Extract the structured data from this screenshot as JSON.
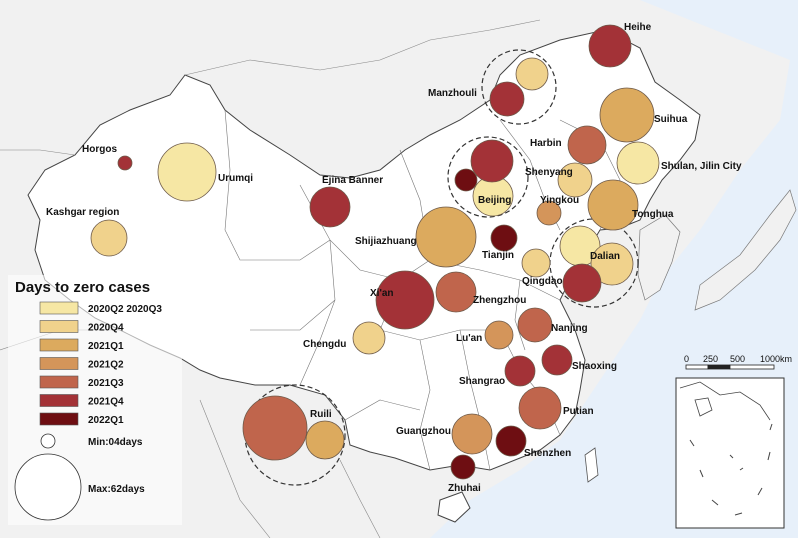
{
  "legend": {
    "title": "Days to zero cases",
    "classes": [
      {
        "label": "2020Q2 2020Q3",
        "color": "#f6e7a4"
      },
      {
        "label": "2020Q4",
        "color": "#f0d28c"
      },
      {
        "label": "2021Q1",
        "color": "#dcaa5e"
      },
      {
        "label": "2021Q2",
        "color": "#d4955a"
      },
      {
        "label": "2021Q3",
        "color": "#c0654c"
      },
      {
        "label": "2021Q4",
        "color": "#a33237"
      },
      {
        "label": "2022Q1",
        "color": "#6e0e12"
      }
    ],
    "size_min_label": "Min:04days",
    "size_max_label": "Max:62days"
  },
  "scale_bar": {
    "ticks": [
      "0",
      "250",
      "500",
      "1000km"
    ]
  },
  "cities": [
    {
      "name": "Heihe",
      "class": 5
    },
    {
      "name": "Manzhouli",
      "class": 5
    },
    {
      "name": "Manzhouli-2",
      "label": "",
      "class": 1
    },
    {
      "name": "Suihua",
      "class": 2
    },
    {
      "name": "Harbin",
      "class": 4
    },
    {
      "name": "Horgos",
      "class": 5
    },
    {
      "name": "Urumqi",
      "class": 0
    },
    {
      "name": "Shulan, Jilin City",
      "class": 0
    },
    {
      "name": "Shenyang",
      "class": 1
    },
    {
      "name": "Ejina Banner",
      "class": 5
    },
    {
      "name": "Beijing",
      "class": 0
    },
    {
      "name": "Beijing-2",
      "label": "",
      "class": 5
    },
    {
      "name": "Beijing-3",
      "label": "",
      "class": 6
    },
    {
      "name": "Yingkou",
      "class": 3
    },
    {
      "name": "Tonghua",
      "class": 2
    },
    {
      "name": "Kashgar region",
      "class": 1
    },
    {
      "name": "Shijiazhuang",
      "class": 2
    },
    {
      "name": "Tianjin",
      "class": 6
    },
    {
      "name": "Dalian",
      "class": 0
    },
    {
      "name": "Dalian-2",
      "label": "",
      "class": 1
    },
    {
      "name": "Dalian-3",
      "label": "",
      "class": 5
    },
    {
      "name": "Qingdao",
      "class": 1
    },
    {
      "name": "Xi'an",
      "class": 5
    },
    {
      "name": "Zhengzhou",
      "class": 4
    },
    {
      "name": "Chengdu",
      "class": 1
    },
    {
      "name": "Lu'an",
      "class": 3
    },
    {
      "name": "Nanjing",
      "class": 4
    },
    {
      "name": "Shaoxing",
      "class": 5
    },
    {
      "name": "Shangrao",
      "class": 5
    },
    {
      "name": "Ruili",
      "class": 4
    },
    {
      "name": "Ruili-2",
      "label": "",
      "class": 2
    },
    {
      "name": "Putian",
      "class": 4
    },
    {
      "name": "Guangzhou",
      "class": 3
    },
    {
      "name": "Shenzhen",
      "class": 6
    },
    {
      "name": "Zhuhai",
      "class": 6
    }
  ]
}
